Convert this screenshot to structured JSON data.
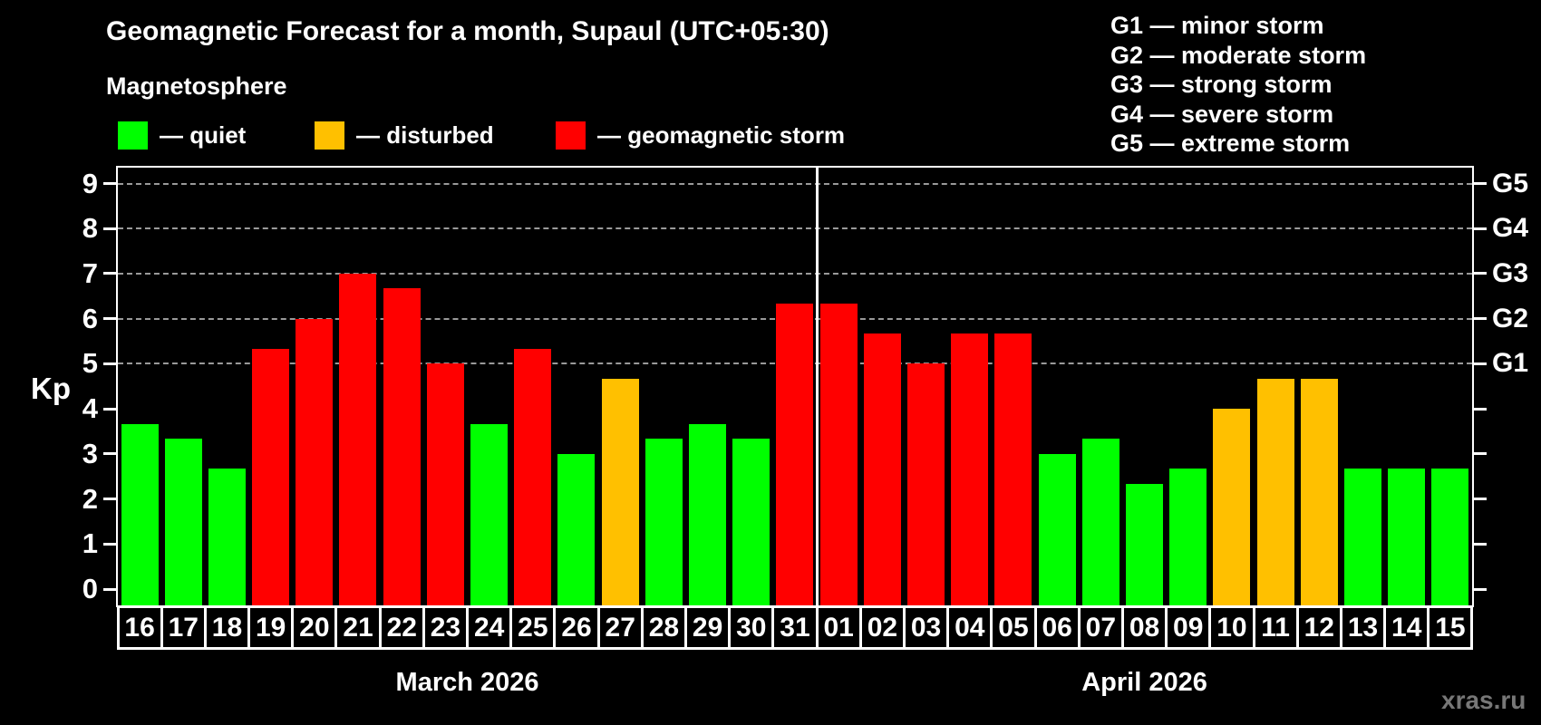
{
  "header": {
    "title": "Geomagnetic Forecast for a month, Supaul (UTC+05:30)",
    "subtitle": "Magnetosphere"
  },
  "legend": {
    "items": [
      {
        "key": "quiet",
        "label": "— quiet",
        "color": "#00ff00"
      },
      {
        "key": "disturbed",
        "label": "— disturbed",
        "color": "#ffc000"
      },
      {
        "key": "storm",
        "label": "— geomagnetic storm",
        "color": "#ff0000"
      }
    ]
  },
  "g_scale_legend": {
    "items": [
      "G1 — minor storm",
      "G2 — moderate storm",
      "G3 — strong storm",
      "G4 — severe storm",
      "G5 — extreme storm"
    ]
  },
  "watermark": "xras.ru",
  "chart_data": {
    "type": "bar",
    "title": "Geomagnetic Forecast for a month, Supaul (UTC+05:30)",
    "ylabel": "Kp",
    "ylim": [
      0,
      9
    ],
    "yticks": [
      0,
      1,
      2,
      3,
      4,
      5,
      6,
      7,
      8,
      9
    ],
    "grid_kp_levels": [
      5,
      6,
      7,
      8,
      9
    ],
    "right_axis": {
      "labels": [
        "G1",
        "G2",
        "G3",
        "G4",
        "G5"
      ],
      "kp_positions": [
        5,
        6,
        7,
        8,
        9
      ]
    },
    "legend_position": "top-left",
    "level_colors": {
      "quiet": "#00ff00",
      "disturbed": "#ffc000",
      "storm": "#ff0000"
    },
    "months": [
      {
        "label": "March 2026",
        "days": [
          "16",
          "17",
          "18",
          "19",
          "20",
          "21",
          "22",
          "23",
          "24",
          "25",
          "26",
          "27",
          "28",
          "29",
          "30",
          "31"
        ],
        "values": [
          3.67,
          3.33,
          2.67,
          5.33,
          6.0,
          7.0,
          6.67,
          5.0,
          3.67,
          5.33,
          3.0,
          4.67,
          3.33,
          3.67,
          3.33,
          6.33
        ],
        "levels": [
          "quiet",
          "quiet",
          "quiet",
          "storm",
          "storm",
          "storm",
          "storm",
          "storm",
          "quiet",
          "storm",
          "quiet",
          "disturbed",
          "quiet",
          "quiet",
          "quiet",
          "storm"
        ]
      },
      {
        "label": "April 2026",
        "days": [
          "01",
          "02",
          "03",
          "04",
          "05",
          "06",
          "07",
          "08",
          "09",
          "10",
          "11",
          "12",
          "13",
          "14",
          "15"
        ],
        "values": [
          6.33,
          5.67,
          5.0,
          5.67,
          5.67,
          3.0,
          3.33,
          2.33,
          2.67,
          4.0,
          4.67,
          4.67,
          2.67,
          2.67,
          2.67
        ],
        "levels": [
          "storm",
          "storm",
          "storm",
          "storm",
          "storm",
          "quiet",
          "quiet",
          "quiet",
          "quiet",
          "disturbed",
          "disturbed",
          "disturbed",
          "quiet",
          "quiet",
          "quiet"
        ]
      }
    ]
  }
}
